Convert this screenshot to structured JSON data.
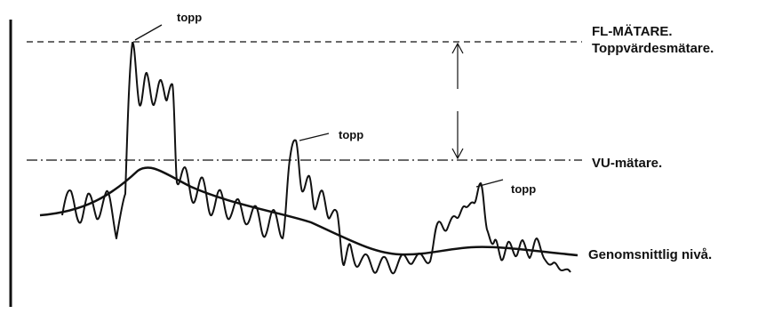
{
  "labels": {
    "peak": "topp",
    "fl_meter": "FL-MÄTARE.",
    "peak_meter": "Toppvärdesmätare.",
    "vu_meter": "VU-mätare.",
    "average_level": "Genomsnittlig nivå."
  },
  "colors": {
    "ink": "#111111",
    "background": "#ffffff"
  }
}
